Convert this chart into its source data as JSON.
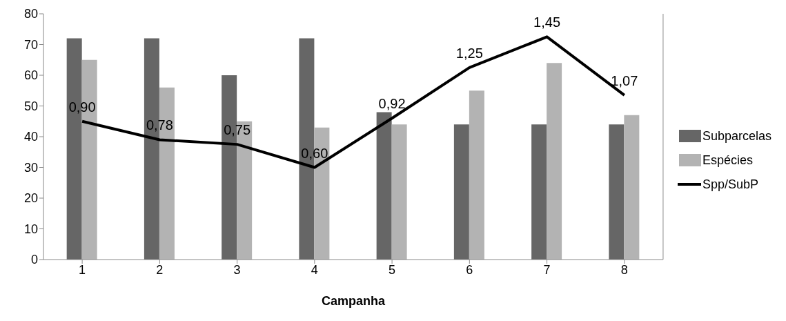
{
  "chart_data": {
    "type": "bar",
    "xlabel": "Campanha",
    "categories": [
      "1",
      "2",
      "3",
      "4",
      "5",
      "6",
      "7",
      "8"
    ],
    "series": [
      {
        "name": "Subparcelas",
        "color": "#666666",
        "values": [
          72,
          72,
          60,
          72,
          48,
          44,
          44,
          44
        ]
      },
      {
        "name": "Espécies",
        "color": "#b3b3b3",
        "values": [
          65,
          56,
          45,
          43,
          44,
          55,
          64,
          47
        ]
      },
      {
        "name": "Spp/SubP",
        "type": "line",
        "axis": "y2",
        "color": "#000000",
        "values": [
          0.9,
          0.78,
          0.75,
          0.6,
          0.92,
          1.25,
          1.45,
          1.07
        ],
        "value_labels": [
          "0,90",
          "0,78",
          "0,75",
          "0,60",
          "0,92",
          "1,25",
          "1,45",
          "1,07"
        ]
      }
    ],
    "ylim": [
      0,
      80
    ],
    "yticks": [
      0,
      10,
      20,
      30,
      40,
      50,
      60,
      70,
      80
    ],
    "y2lim": [
      0,
      1.6
    ],
    "legend": "right",
    "marker": "none"
  }
}
